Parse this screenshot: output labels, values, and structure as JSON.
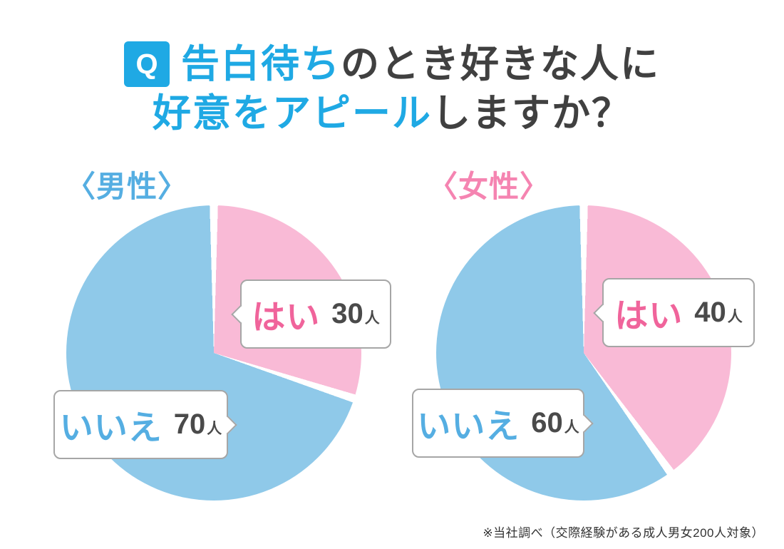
{
  "title": {
    "badge": "Q",
    "line1_highlight": "告白待ち",
    "line1_rest": "のとき好きな人に",
    "line2_highlight": "好意をアピール",
    "line2_rest": "しますか？"
  },
  "colors": {
    "accent_blue": "#1FA9E4",
    "accent_pink": "#F0649B",
    "label_blue": "#55AEE2",
    "label_pink": "#F584B1",
    "pie_blue": "#8FC9E9",
    "pie_pink": "#F9BAD6",
    "text_dark": "#404040",
    "border_gray": "#A6A6A6"
  },
  "chart_data": [
    {
      "type": "pie",
      "title": "〈男性〉",
      "labels": [
        "はい",
        "いいえ"
      ],
      "values": [
        30,
        70
      ],
      "unit": "人",
      "slice_colors": [
        "#F9BAD6",
        "#8FC9E9"
      ],
      "start_angle_deg": 0,
      "direction": "clockwise",
      "legend": "callout-labels"
    },
    {
      "type": "pie",
      "title": "〈女性〉",
      "labels": [
        "はい",
        "いいえ"
      ],
      "values": [
        40,
        60
      ],
      "unit": "人",
      "slice_colors": [
        "#F9BAD6",
        "#8FC9E9"
      ],
      "start_angle_deg": 0,
      "direction": "clockwise",
      "legend": "callout-labels"
    }
  ],
  "footnote": "※当社調べ（交際経験がある成人男女200人対象）"
}
